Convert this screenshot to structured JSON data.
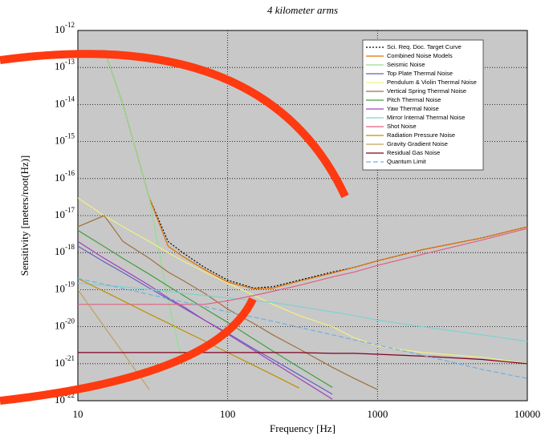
{
  "chart_data": {
    "type": "line",
    "title": "4 kilometer arms",
    "x_label": "Frequency [Hz]",
    "y_label": "Sensitivity [meters/root(Hz)]",
    "xlog": true,
    "ylog": true,
    "grid": true,
    "legend": "upper right",
    "xlim": [
      10,
      10000
    ],
    "ylim": [
      1e-22,
      1e-12
    ],
    "xticks": [
      10,
      100,
      1000,
      10000
    ],
    "yticks": [
      {
        "value": 1e-12,
        "label": "10-12"
      },
      {
        "value": 1e-13,
        "label": "10-13"
      },
      {
        "value": 1e-14,
        "label": "10-14"
      },
      {
        "value": 1e-15,
        "label": "10-15"
      },
      {
        "value": 1e-16,
        "label": "10-16"
      },
      {
        "value": 1e-17,
        "label": "10-17"
      },
      {
        "value": 1e-18,
        "label": "10-18"
      },
      {
        "value": 1e-19,
        "label": "10-19"
      },
      {
        "value": 1e-20,
        "label": "10-20"
      },
      {
        "value": 1e-21,
        "label": "10-21"
      },
      {
        "value": 1e-22,
        "label": "10-22"
      }
    ],
    "x": [
      10,
      15,
      20,
      30,
      40,
      50,
      70,
      100,
      150,
      200,
      300,
      500,
      700,
      1000,
      2000,
      5000,
      10000
    ],
    "series": [
      {
        "name": "Sci. Req. Doc. Target Curve",
        "color": "#000000",
        "style": "dotted",
        "values": [
          null,
          3e-13,
          1e-14,
          3e-17,
          2e-18,
          1e-18,
          4e-19,
          1.8e-19,
          1.1e-19,
          1.2e-19,
          1.8e-19,
          3e-19,
          4e-19,
          6e-19,
          1.2e-18,
          2.5e-18,
          5e-18
        ]
      },
      {
        "name": "Combined Noise Models",
        "color": "#e07000",
        "values": [
          null,
          3e-13,
          1e-14,
          3e-17,
          1.5e-18,
          8e-19,
          3.5e-19,
          1.6e-19,
          1.05e-19,
          1.1e-19,
          1.7e-19,
          2.8e-19,
          4e-19,
          6e-19,
          1.2e-18,
          2.5e-18,
          5e-18
        ]
      },
      {
        "name": "Seismic Noise",
        "color": "#90e090",
        "values": [
          null,
          3e-13,
          1e-14,
          3e-17,
          5e-20,
          1e-21,
          null,
          null,
          null,
          null,
          null,
          null,
          null,
          null,
          null,
          null,
          null
        ]
      },
      {
        "name": "Top Plate Thermal Noise",
        "color": "#6060c0",
        "values": [
          1.5e-18,
          5.6e-19,
          2.9e-19,
          1.1e-19,
          5.6e-20,
          3.3e-20,
          1.5e-20,
          6.7e-21,
          2.5e-21,
          1.3e-21,
          5e-22,
          1.5e-22,
          null,
          null,
          null,
          null,
          null
        ]
      },
      {
        "name": "Pendulum & Violin Thermal Noise",
        "color": "#f0f080",
        "values": [
          3e-17,
          1e-17,
          5e-18,
          2e-18,
          1e-18,
          6e-19,
          3e-19,
          1.5e-19,
          7e-20,
          4e-20,
          2e-20,
          1e-20,
          5e-21,
          3e-21,
          2e-21,
          1.5e-21,
          1e-21
        ]
      },
      {
        "name": "Vertical Spring Thermal Noise",
        "color": "#a07040",
        "values": [
          5e-18,
          1e-17,
          2e-18,
          7e-19,
          3e-19,
          1.8e-19,
          8e-20,
          3e-20,
          1.2e-20,
          6e-21,
          2.5e-21,
          8e-22,
          4e-22,
          2e-22,
          null,
          null,
          null
        ]
      },
      {
        "name": "Pitch Thermal Noise",
        "color": "#40a040",
        "values": [
          4e-18,
          1.45e-18,
          7e-19,
          2.6e-19,
          1.25e-19,
          7.2e-20,
          3.1e-20,
          1.3e-20,
          4.6e-21,
          2.2e-21,
          8e-22,
          2.3e-22,
          null,
          null,
          null,
          null,
          null
        ]
      },
      {
        "name": "Yaw Thermal Noise",
        "color": "#a040c0",
        "values": [
          2e-18,
          7e-19,
          3.5e-19,
          1.3e-19,
          6e-20,
          3.6e-20,
          1.5e-20,
          6.3e-21,
          2.3e-21,
          1.1e-21,
          4e-22,
          1.1e-22,
          null,
          null,
          null,
          null,
          null
        ]
      },
      {
        "name": "Mirror Internal Thermal Noise",
        "color": "#80d0d0",
        "values": [
          1.5e-19,
          1.3e-19,
          1.2e-19,
          1e-19,
          9e-20,
          8e-20,
          7e-20,
          6e-20,
          5e-20,
          4.5e-20,
          3.5e-20,
          2.5e-20,
          2e-20,
          1.5e-20,
          1e-20,
          6e-21,
          4e-21
        ]
      },
      {
        "name": "Shot Noise",
        "color": "#e06080",
        "values": [
          4e-20,
          4e-20,
          4e-20,
          4e-20,
          4e-20,
          4e-20,
          4e-20,
          5e-20,
          7e-20,
          9e-20,
          1.3e-19,
          2.2e-19,
          3e-19,
          4.5e-19,
          9e-19,
          2.2e-18,
          4.5e-18
        ]
      },
      {
        "name": "Radiation Pressure Noise",
        "color": "#c09000",
        "values": [
          2e-19,
          8.9e-20,
          5e-20,
          2.2e-20,
          1.25e-20,
          8e-21,
          4.1e-21,
          2e-21,
          8.9e-22,
          5e-22,
          2.2e-22,
          null,
          null,
          null,
          null,
          null,
          null
        ]
      },
      {
        "name": "Gravity Gradient Noise",
        "color": "#c0a060",
        "values": [
          1e-19,
          1e-20,
          2e-21,
          2e-22,
          null,
          null,
          null,
          null,
          null,
          null,
          null,
          null,
          null,
          null,
          null,
          null,
          null
        ]
      },
      {
        "name": "Residual Gas Noise",
        "color": "#800020",
        "values": [
          2e-21,
          2e-21,
          2e-21,
          2e-21,
          2e-21,
          2e-21,
          2e-21,
          2e-21,
          2e-21,
          2e-21,
          2e-21,
          1.9e-21,
          1.9e-21,
          1.8e-21,
          1.6e-21,
          1.3e-21,
          1e-21
        ]
      },
      {
        "name": "Quantum Limit",
        "color": "#70b0e0",
        "style": "dashed",
        "values": [
          2e-19,
          1.4e-19,
          1.07e-19,
          7.4e-20,
          5.7e-20,
          4.7e-20,
          3.5e-20,
          2.5e-20,
          1.8e-20,
          1.4e-20,
          9.6e-21,
          6e-21,
          4.4e-21,
          3.2e-21,
          1.7e-21,
          7e-22,
          4e-22
        ]
      }
    ]
  }
}
